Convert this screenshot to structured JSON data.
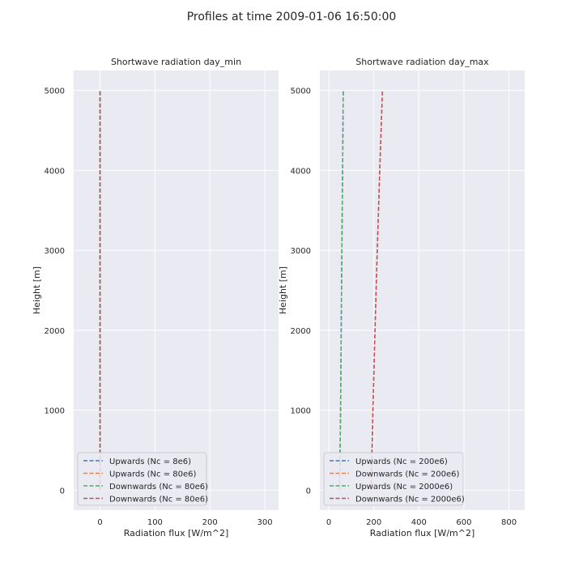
{
  "figure": {
    "suptitle": "Profiles at time 2009-01-06 16:50:00",
    "background": "#ffffff",
    "axes_facecolor": "#eaeaf2",
    "grid_color": "#ffffff"
  },
  "chart_data": [
    {
      "type": "line",
      "title": "Shortwave radiation day_min",
      "xlabel": "Radiation flux [W/m^2]",
      "ylabel": "Height [m]",
      "xlim": [
        -48,
        325
      ],
      "ylim": [
        -250,
        5250
      ],
      "xticks": [
        0,
        100,
        200,
        300
      ],
      "yticks": [
        0,
        1000,
        2000,
        3000,
        4000,
        5000
      ],
      "grid": true,
      "legend_position": "lower-left",
      "series": [
        {
          "name": "Upwards (Nc = 8e6)",
          "color": "#4c72b0",
          "linestyle": "dashed",
          "points": [
            [
              0,
              0
            ],
            [
              0,
              5000
            ]
          ]
        },
        {
          "name": "Upwards (Nc = 80e6)",
          "color": "#dd8452",
          "linestyle": "dashed",
          "points": [
            [
              0,
              0
            ],
            [
              0,
              5000
            ]
          ]
        },
        {
          "name": "Downwards (Nc = 80e6)",
          "color": "#55a868",
          "linestyle": "dashed",
          "points": [
            [
              0,
              0
            ],
            [
              0,
              5000
            ]
          ]
        },
        {
          "name": "Downwards (Nc = 80e6)",
          "color": "#c44e52",
          "linestyle": "dashed",
          "points": [
            [
              0,
              0
            ],
            [
              0,
              5000
            ]
          ]
        }
      ]
    },
    {
      "type": "line",
      "title": "Shortwave radiation day_max",
      "xlabel": "Radiation flux [W/m^2]",
      "ylabel": "Height [m]",
      "xlim": [
        -40,
        870
      ],
      "ylim": [
        -250,
        5250
      ],
      "xticks": [
        0,
        200,
        400,
        600,
        800
      ],
      "yticks": [
        0,
        1000,
        2000,
        3000,
        4000,
        5000
      ],
      "grid": true,
      "legend_position": "lower-left",
      "series": [
        {
          "name": "Upwards (Nc = 200e6)",
          "color": "#4c72b0",
          "linestyle": "dashed",
          "points": [
            [
              48,
              0
            ],
            [
              52,
              1000
            ],
            [
              55,
              2000
            ],
            [
              58,
              3000
            ],
            [
              61,
              4000
            ],
            [
              64,
              5000
            ]
          ]
        },
        {
          "name": "Downwards (Nc = 200e6)",
          "color": "#dd8452",
          "linestyle": "dashed",
          "points": [
            [
              188,
              0
            ],
            [
              196,
              1000
            ],
            [
              205,
              2000
            ],
            [
              215,
              3000
            ],
            [
              226,
              4000
            ],
            [
              238,
              5000
            ]
          ]
        },
        {
          "name": "Upwards (Nc = 2000e6)",
          "color": "#55a868",
          "linestyle": "dashed",
          "points": [
            [
              48,
              0
            ],
            [
              52,
              1000
            ],
            [
              55,
              2000
            ],
            [
              58,
              3000
            ],
            [
              61,
              4000
            ],
            [
              64,
              5000
            ]
          ]
        },
        {
          "name": "Downwards (Nc = 2000e6)",
          "color": "#c44e52",
          "linestyle": "dashed",
          "points": [
            [
              188,
              0
            ],
            [
              196,
              1000
            ],
            [
              205,
              2000
            ],
            [
              215,
              3000
            ],
            [
              226,
              4000
            ],
            [
              238,
              5000
            ]
          ]
        }
      ]
    }
  ]
}
